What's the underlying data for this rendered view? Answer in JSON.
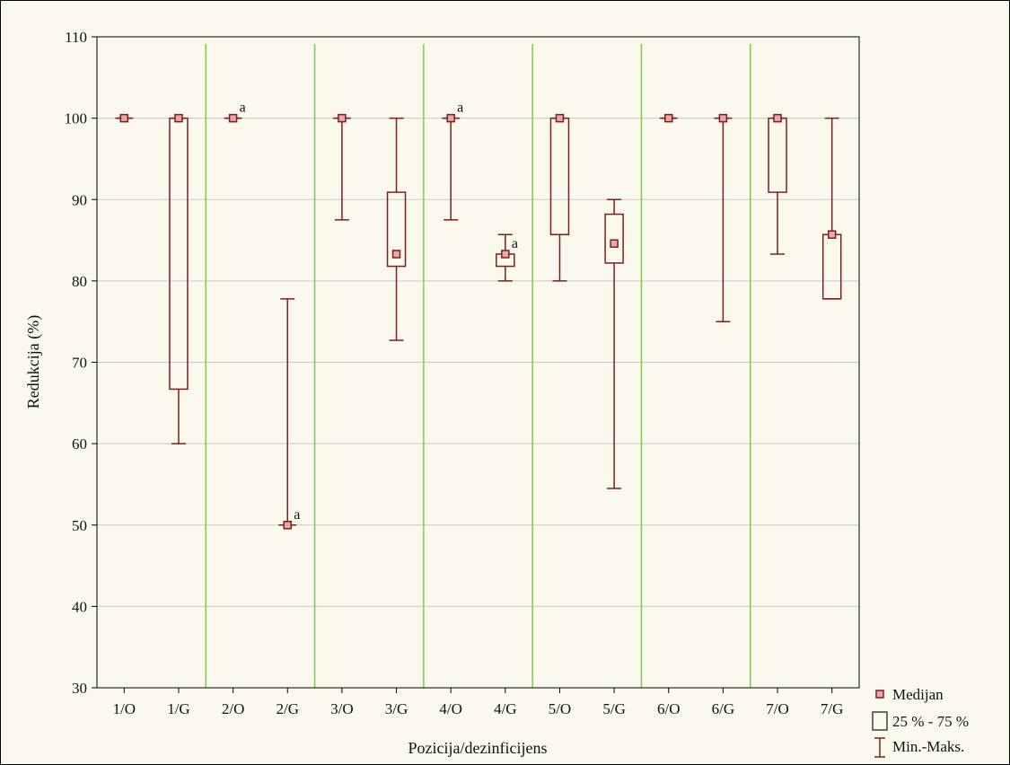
{
  "chart_data": {
    "type": "box",
    "title": "",
    "xlabel": "Pozicija/dezinficijens",
    "ylabel": "Redukcija (%)",
    "ylim": [
      30,
      110
    ],
    "yticks": [
      30,
      40,
      50,
      60,
      70,
      80,
      90,
      100,
      110
    ],
    "grid": true,
    "legend_position": "bottom-right, outside plot",
    "colors": {
      "box": "#7a1e1e",
      "median_fill": "#e8a8a8",
      "separator": "#7ec850",
      "grid": "#c8c8c8",
      "background": "#fbf8ed"
    },
    "categories": [
      "1/O",
      "1/G",
      "2/O",
      "2/G",
      "3/O",
      "3/G",
      "4/O",
      "4/G",
      "5/O",
      "5/G",
      "6/O",
      "6/G",
      "7/O",
      "7/G"
    ],
    "boxes": [
      {
        "category": "1/O",
        "median": 100,
        "q1": 100,
        "q3": 100,
        "min": 100,
        "max": 100,
        "annotation": ""
      },
      {
        "category": "1/G",
        "median": 100,
        "q1": 66.7,
        "q3": 100,
        "min": 60,
        "max": 100,
        "annotation": ""
      },
      {
        "category": "2/O",
        "median": 100,
        "q1": 100,
        "q3": 100,
        "min": 100,
        "max": 100,
        "annotation": "a"
      },
      {
        "category": "2/G",
        "median": 50,
        "q1": 50,
        "q3": 50,
        "min": 50,
        "max": 77.8,
        "annotation": "a"
      },
      {
        "category": "3/O",
        "median": 100,
        "q1": 100,
        "q3": 100,
        "min": 87.5,
        "max": 100,
        "annotation": ""
      },
      {
        "category": "3/G",
        "median": 83.3,
        "q1": 81.8,
        "q3": 90.9,
        "min": 72.7,
        "max": 100,
        "annotation": ""
      },
      {
        "category": "4/O",
        "median": 100,
        "q1": 100,
        "q3": 100,
        "min": 87.5,
        "max": 100,
        "annotation": "a"
      },
      {
        "category": "4/G",
        "median": 83.3,
        "q1": 81.8,
        "q3": 83.3,
        "min": 80,
        "max": 85.7,
        "annotation": "a"
      },
      {
        "category": "5/O",
        "median": 100,
        "q1": 85.7,
        "q3": 100,
        "min": 80,
        "max": 100,
        "annotation": ""
      },
      {
        "category": "5/G",
        "median": 84.6,
        "q1": 82.2,
        "q3": 88.2,
        "min": 54.5,
        "max": 90,
        "annotation": ""
      },
      {
        "category": "6/O",
        "median": 100,
        "q1": 100,
        "q3": 100,
        "min": 100,
        "max": 100,
        "annotation": ""
      },
      {
        "category": "6/G",
        "median": 100,
        "q1": 100,
        "q3": 100,
        "min": 75,
        "max": 100,
        "annotation": ""
      },
      {
        "category": "7/O",
        "median": 100,
        "q1": 90.9,
        "q3": 100,
        "min": 83.3,
        "max": 100,
        "annotation": ""
      },
      {
        "category": "7/G",
        "median": 85.7,
        "q1": 77.8,
        "q3": 85.7,
        "min": 77.8,
        "max": 100,
        "annotation": ""
      }
    ],
    "legend": [
      "Medijan",
      "25 % - 75 %",
      "Min.-Maks."
    ]
  }
}
